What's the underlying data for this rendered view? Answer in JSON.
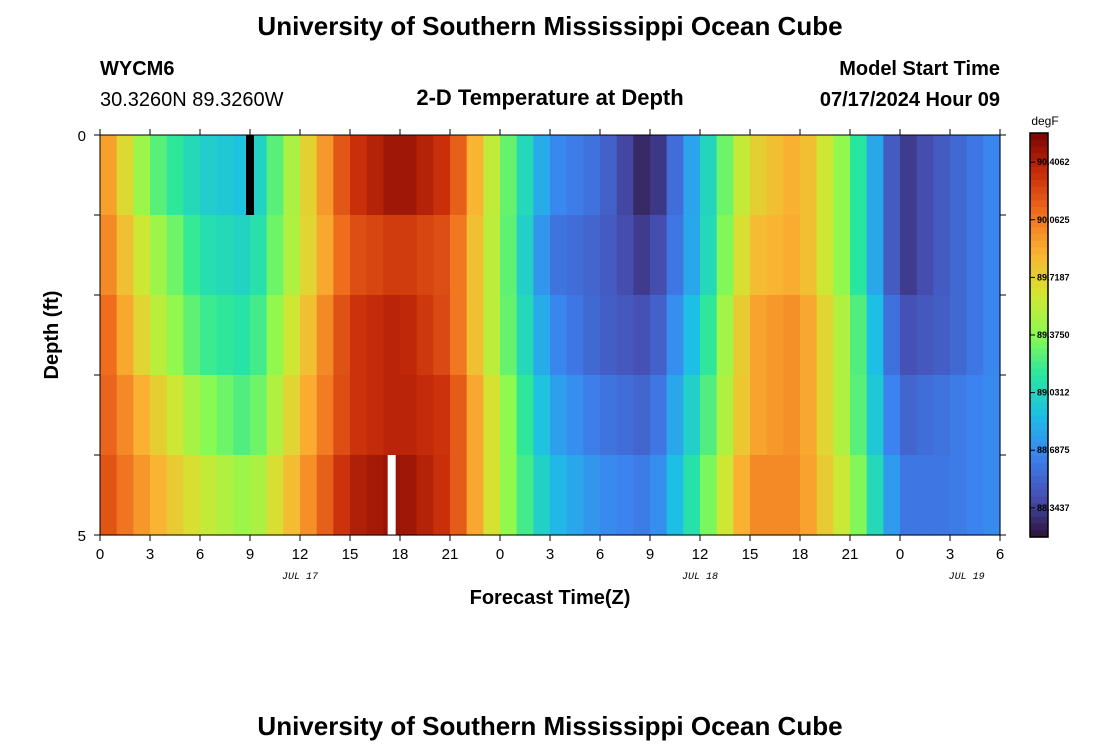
{
  "title": "University of Southern Mississippi Ocean Cube",
  "title_bottom": "University of Southern Mississippi Ocean Cube",
  "station": {
    "id": "WYCM6",
    "coords": "30.3260N  89.3260W"
  },
  "subtitle": "2-D Temperature at Depth",
  "model_start": {
    "label": "Model Start Time",
    "value": "07/17/2024 Hour 09"
  },
  "chart_data": {
    "type": "heatmap",
    "title": "2-D Temperature at Depth",
    "xlabel": "Forecast Time(Z)",
    "ylabel": "Depth (ft)",
    "x_start_hour": 0,
    "x_end_hour": 54,
    "x_tick_labels": [
      "0",
      "3",
      "6",
      "9",
      "12",
      "15",
      "18",
      "21",
      "0",
      "3",
      "6",
      "9",
      "12",
      "15",
      "18",
      "21",
      "0",
      "3",
      "6"
    ],
    "day_labels": [
      {
        "text": "JUL 17",
        "hour": 12
      },
      {
        "text": "JUL 18",
        "hour": 36
      },
      {
        "text": "JUL 19",
        "hour": 52
      }
    ],
    "y_tick_labels": [
      "0",
      "5"
    ],
    "y_range": [
      0,
      5
    ],
    "depth_bands": 5,
    "colorbar": {
      "unit": "degF",
      "min": 88.17,
      "max": 90.58,
      "ticks": [
        "90.4062",
        "90.0625",
        "89.7187",
        "89.3750",
        "89.0312",
        "88.6875",
        "88.3437"
      ],
      "tick_values": [
        90.4062,
        90.0625,
        89.7187,
        89.375,
        89.0312,
        88.6875,
        88.3437
      ]
    },
    "series": [
      {
        "values": [
          90.05,
          89.3,
          89.0,
          88.9,
          89.6,
          90.3,
          90.5,
          90.3,
          89.4,
          88.7,
          88.55,
          88.2,
          88.9,
          89.7,
          89.9,
          89.3,
          88.3,
          88.5,
          88.7
        ]
      },
      {
        "values": [
          90.1,
          89.5,
          89.1,
          89.0,
          89.6,
          90.2,
          90.3,
          90.2,
          89.4,
          88.6,
          88.5,
          88.3,
          88.9,
          89.8,
          89.9,
          89.3,
          88.3,
          88.5,
          88.7
        ]
      },
      {
        "values": [
          90.2,
          89.6,
          89.2,
          89.1,
          89.7,
          90.3,
          90.4,
          90.2,
          89.4,
          88.7,
          88.5,
          88.4,
          89.0,
          89.9,
          90.0,
          89.4,
          88.4,
          88.5,
          88.7
        ]
      },
      {
        "values": [
          90.2,
          89.8,
          89.4,
          89.2,
          89.8,
          90.3,
          90.4,
          90.3,
          89.5,
          88.8,
          88.6,
          88.5,
          89.1,
          89.9,
          90.0,
          89.4,
          88.5,
          88.6,
          88.7
        ]
      },
      {
        "values": [
          90.25,
          89.9,
          89.6,
          89.4,
          89.9,
          90.4,
          90.5,
          90.3,
          89.5,
          88.9,
          88.7,
          88.6,
          89.2,
          90.0,
          90.0,
          89.5,
          88.6,
          88.6,
          88.7
        ]
      }
    ],
    "missing_cells": [
      {
        "band": 0,
        "hour": 9,
        "color": "#000000"
      },
      {
        "band": 4,
        "hour": 17.5,
        "color": "#ffffff"
      }
    ]
  }
}
